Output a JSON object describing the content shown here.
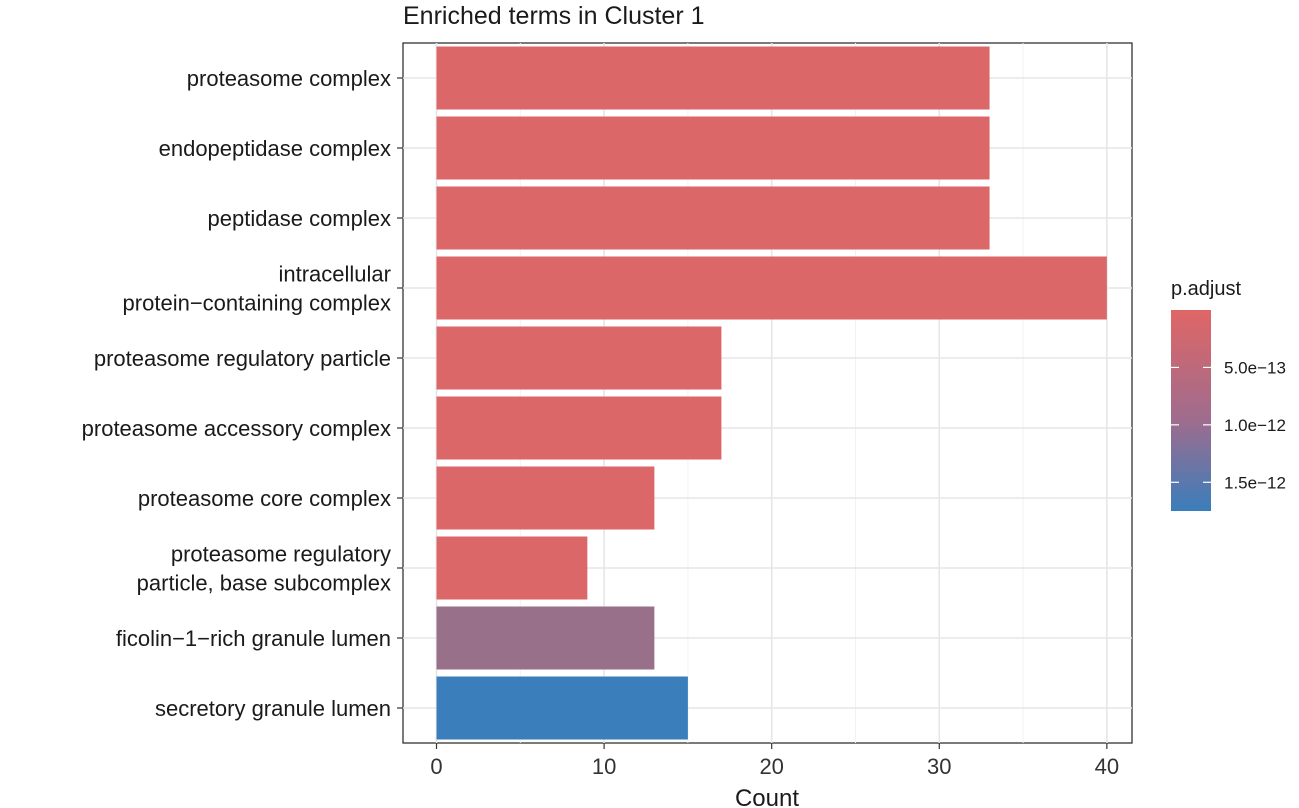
{
  "chart_data": {
    "type": "bar",
    "orientation": "horizontal",
    "title": "Enriched terms in Cluster 1",
    "xlabel": "Count",
    "ylabel": "",
    "xlim": [
      -2,
      41.5
    ],
    "xticks": [
      0,
      10,
      20,
      30,
      40
    ],
    "grid": true,
    "legend_position": "right",
    "categories": [
      "proteasome complex",
      "endopeptidase complex",
      "peptidase complex",
      "intracellular\nprotein−containing complex",
      "proteasome regulatory particle",
      "proteasome accessory complex",
      "proteasome core complex",
      "proteasome regulatory\nparticle, base subcomplex",
      "ficolin−1−rich granule lumen",
      "secretory granule lumen"
    ],
    "values": [
      33,
      33,
      33,
      40,
      17,
      17,
      13,
      9,
      13,
      15
    ],
    "p_adjust": [
      5e-14,
      5e-14,
      5e-14,
      5e-14,
      5e-14,
      5e-14,
      5e-14,
      5e-14,
      7.5e-13,
      1.75e-12
    ],
    "colorbar": {
      "title": "p.adjust",
      "range": [
        1e-16,
        1.75e-12
      ],
      "low_color": "#E06666",
      "high_color": "#3A7EBB",
      "ticks": [
        {
          "value": 5e-13,
          "label": "5.0e−13"
        },
        {
          "value": 1e-12,
          "label": "1.0e−12"
        },
        {
          "value": 1.5e-12,
          "label": "1.5e−12"
        }
      ]
    }
  }
}
